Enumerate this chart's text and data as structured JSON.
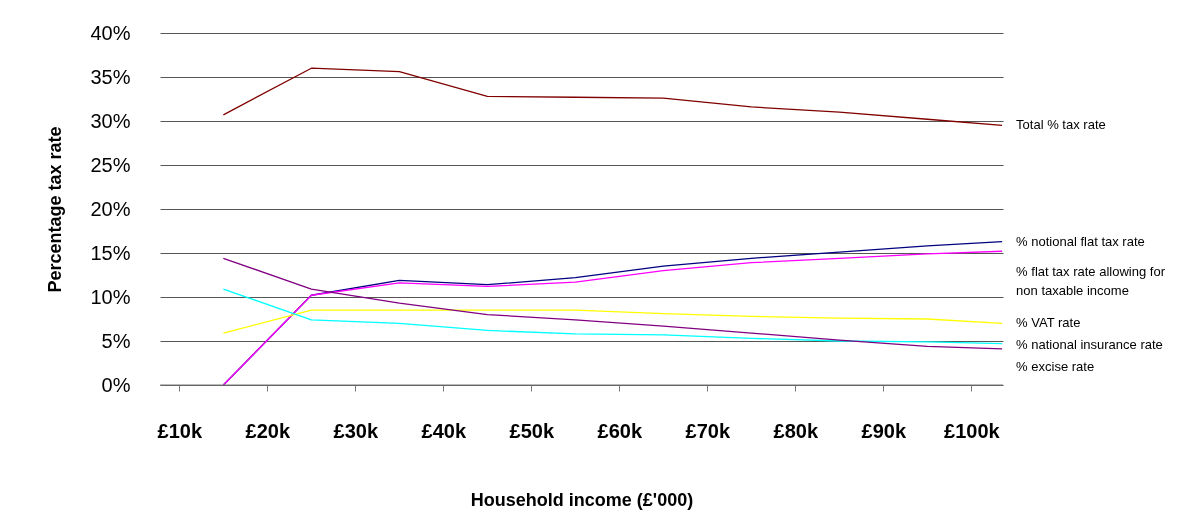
{
  "chart_data": {
    "type": "line",
    "xlabel": "Household income (£'000)",
    "ylabel": "Percentage tax rate",
    "x": [
      15,
      25,
      35,
      45,
      55,
      65,
      75,
      85,
      95,
      103.5
    ],
    "series": [
      {
        "name": "Total % tax rate",
        "color": "#800000",
        "values": [
          30.7,
          36.0,
          35.6,
          32.8,
          32.7,
          32.6,
          31.6,
          31.0,
          30.2,
          29.5
        ]
      },
      {
        "name": "% notional flat tax rate",
        "color": "#000080",
        "values": [
          0,
          10.2,
          11.9,
          11.4,
          12.2,
          13.5,
          14.4,
          15.1,
          15.8,
          16.3
        ]
      },
      {
        "name": "% flat tax rate allowing for non taxable income",
        "color": "#ff00ff",
        "values": [
          0,
          10.2,
          11.6,
          11.2,
          11.7,
          13.0,
          13.9,
          14.4,
          14.9,
          15.2
        ]
      },
      {
        "name": "% VAT rate",
        "color": "#ffff00",
        "values": [
          5.9,
          8.5,
          8.5,
          8.5,
          8.5,
          8.1,
          7.8,
          7.6,
          7.5,
          7.0
        ]
      },
      {
        "name": "% national insurance rate",
        "color": "#00ffff",
        "values": [
          10.9,
          7.4,
          7.0,
          6.2,
          5.8,
          5.7,
          5.3,
          5.0,
          4.9,
          4.7
        ]
      },
      {
        "name": "% excise rate",
        "color": "#800080",
        "values": [
          14.4,
          10.9,
          9.3,
          8.0,
          7.4,
          6.7,
          5.9,
          5.1,
          4.4,
          4.1
        ]
      }
    ],
    "xlim": [
      7.8,
      103.6
    ],
    "xticks": [
      {
        "value": 10,
        "label": "£10k"
      },
      {
        "value": 20,
        "label": "£20k"
      },
      {
        "value": 30,
        "label": "£30k"
      },
      {
        "value": 40,
        "label": "£40k"
      },
      {
        "value": 50,
        "label": "£50k"
      },
      {
        "value": 60,
        "label": "£60k"
      },
      {
        "value": 70,
        "label": "£70k"
      },
      {
        "value": 80,
        "label": "£80k"
      },
      {
        "value": 90,
        "label": "£90k"
      },
      {
        "value": 100,
        "label": "£100k"
      }
    ],
    "ylim": [
      0,
      40
    ],
    "yticks": [
      {
        "value": 0,
        "label": "0%"
      },
      {
        "value": 5,
        "label": "5%"
      },
      {
        "value": 10,
        "label": "10%"
      },
      {
        "value": 15,
        "label": "15%"
      },
      {
        "value": 20,
        "label": "20%"
      },
      {
        "value": 25,
        "label": "25%"
      },
      {
        "value": 30,
        "label": "30%"
      },
      {
        "value": 35,
        "label": "35%"
      },
      {
        "value": 40,
        "label": "40%"
      }
    ],
    "grid": "y",
    "marker": "none",
    "line_style": "solid"
  }
}
